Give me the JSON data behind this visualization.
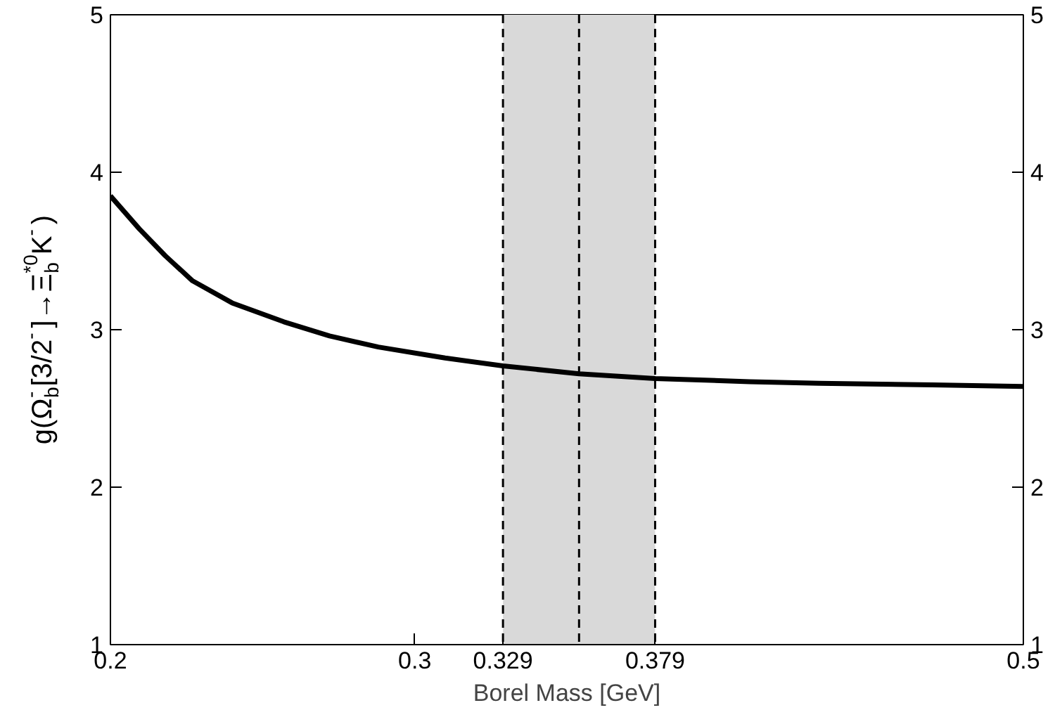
{
  "chart_data": {
    "type": "line",
    "xlabel": "Borel Mass [GeV]",
    "ylabel": "g(Ω$_{b}$$^{-}$[3/2$^{-}$]→Ξ$_{b}$$^{*0}$K$^{-}$)",
    "x": [
      0.2,
      0.2095,
      0.218,
      0.227,
      0.24,
      0.257,
      0.272,
      0.288,
      0.31,
      0.329,
      0.354,
      0.379,
      0.41,
      0.433,
      0.47,
      0.5
    ],
    "series": [
      {
        "color": "#000000",
        "values": [
          3.85,
          3.64,
          3.47,
          3.31,
          3.17,
          3.05,
          2.96,
          2.89,
          2.82,
          2.77,
          2.72,
          2.69,
          2.67,
          2.66,
          2.65,
          2.64
        ]
      }
    ],
    "xlim": [
      0.2,
      0.5
    ],
    "xticks": [
      0.2,
      0.3,
      0.329,
      0.379,
      0.5
    ],
    "ylim": [
      1,
      5
    ],
    "yticks": [
      1,
      2,
      3,
      4,
      5
    ],
    "y2lim": [
      1,
      5
    ],
    "y2ticks": [
      1,
      2,
      3,
      4,
      5
    ],
    "bands": [
      {
        "axis": "x",
        "from": 0.329,
        "to": 0.379,
        "color": "#d9d9d9"
      }
    ],
    "ref_lines": [
      {
        "axis": "x",
        "value": 0.329,
        "line_style": "dashed"
      },
      {
        "axis": "x",
        "value": 0.354,
        "line_style": "dashed"
      },
      {
        "axis": "x",
        "value": 0.379,
        "line_style": "dashed"
      }
    ],
    "grid": false,
    "marker": "none",
    "line_style": "solid"
  }
}
